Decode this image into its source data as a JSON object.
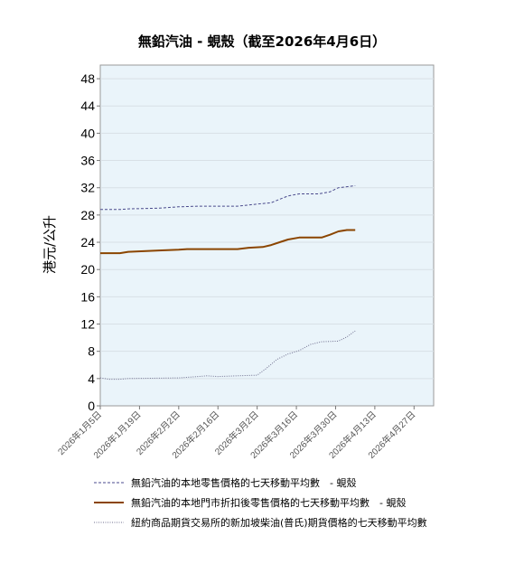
{
  "chart_data": {
    "type": "line",
    "title": "無鉛汽油 - 蜆殼（截至2026年4月6日）",
    "xlabel": "",
    "ylabel": "港元/公升",
    "ylim": [
      0,
      50
    ],
    "yticks": [
      0,
      4,
      8,
      12,
      16,
      20,
      24,
      28,
      32,
      36,
      40,
      44,
      48
    ],
    "x_range": [
      "2026-01-05",
      "2026-05-04"
    ],
    "xticks": [
      {
        "date": "2026-01-05",
        "label": "2026年1月5日"
      },
      {
        "date": "2026-01-19",
        "label": "2026年1月19日"
      },
      {
        "date": "2026-02-02",
        "label": "2026年2月2日"
      },
      {
        "date": "2026-02-16",
        "label": "2026年2月16日"
      },
      {
        "date": "2026-03-02",
        "label": "2026年3月2日"
      },
      {
        "date": "2026-03-16",
        "label": "2026年3月16日"
      },
      {
        "date": "2026-03-30",
        "label": "2026年3月30日"
      },
      {
        "date": "2026-04-13",
        "label": "2026年4月13日"
      },
      {
        "date": "2026-04-27",
        "label": "2026年4月27日"
      }
    ],
    "grid": true,
    "legend_position": "bottom",
    "series": [
      {
        "name": "無鉛汽油的本地零售價格的七天移動平均數　- 蜆殼",
        "color": "#4a4a8c",
        "style": "dashed",
        "points": [
          [
            "2026-01-05",
            28.8
          ],
          [
            "2026-01-12",
            28.8
          ],
          [
            "2026-01-15",
            28.9
          ],
          [
            "2026-01-26",
            29.0
          ],
          [
            "2026-02-02",
            29.2
          ],
          [
            "2026-02-09",
            29.3
          ],
          [
            "2026-02-23",
            29.3
          ],
          [
            "2026-03-02",
            29.6
          ],
          [
            "2026-03-07",
            29.8
          ],
          [
            "2026-03-10",
            30.3
          ],
          [
            "2026-03-13",
            30.8
          ],
          [
            "2026-03-17",
            31.1
          ],
          [
            "2026-03-24",
            31.1
          ],
          [
            "2026-03-28",
            31.4
          ],
          [
            "2026-03-31",
            32.0
          ],
          [
            "2026-04-06",
            32.3
          ]
        ]
      },
      {
        "name": "無鉛汽油的本地門市折扣後零售價格的七天移動平均數　- 蜆殼",
        "color": "#8b4500",
        "style": "solid",
        "points": [
          [
            "2026-01-05",
            22.4
          ],
          [
            "2026-01-12",
            22.4
          ],
          [
            "2026-01-15",
            22.6
          ],
          [
            "2026-01-26",
            22.8
          ],
          [
            "2026-02-02",
            22.9
          ],
          [
            "2026-02-05",
            23.0
          ],
          [
            "2026-02-23",
            23.0
          ],
          [
            "2026-02-27",
            23.2
          ],
          [
            "2026-03-04",
            23.3
          ],
          [
            "2026-03-07",
            23.6
          ],
          [
            "2026-03-10",
            24.0
          ],
          [
            "2026-03-13",
            24.4
          ],
          [
            "2026-03-17",
            24.7
          ],
          [
            "2026-03-25",
            24.7
          ],
          [
            "2026-03-28",
            25.1
          ],
          [
            "2026-03-31",
            25.6
          ],
          [
            "2026-04-03",
            25.8
          ],
          [
            "2026-04-06",
            25.8
          ]
        ]
      },
      {
        "name": "紐約商品期貨交易所的新加坡柴油(普氏)期貨價格的七天移動平均數",
        "color": "#6e6e8e",
        "style": "dotted",
        "points": [
          [
            "2026-01-05",
            4.1
          ],
          [
            "2026-01-08",
            3.9
          ],
          [
            "2026-01-12",
            3.9
          ],
          [
            "2026-01-15",
            4.0
          ],
          [
            "2026-02-02",
            4.1
          ],
          [
            "2026-02-09",
            4.3
          ],
          [
            "2026-02-12",
            4.4
          ],
          [
            "2026-02-16",
            4.3
          ],
          [
            "2026-02-23",
            4.4
          ],
          [
            "2026-03-02",
            4.5
          ],
          [
            "2026-03-05",
            5.4
          ],
          [
            "2026-03-09",
            6.8
          ],
          [
            "2026-03-13",
            7.6
          ],
          [
            "2026-03-17",
            8.1
          ],
          [
            "2026-03-21",
            9.0
          ],
          [
            "2026-03-25",
            9.4
          ],
          [
            "2026-03-31",
            9.5
          ],
          [
            "2026-04-03",
            10.1
          ],
          [
            "2026-04-06",
            11.0
          ]
        ]
      }
    ]
  }
}
